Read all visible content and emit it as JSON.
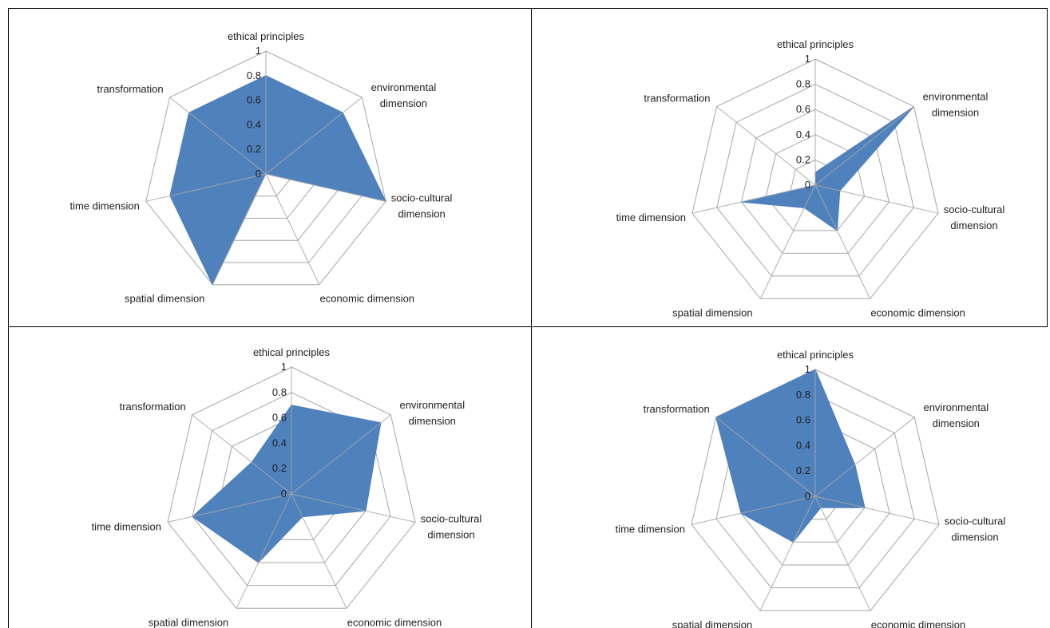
{
  "chart_data": [
    {
      "type": "radar",
      "categories": [
        "ethical principles",
        "environmental dimension",
        "socio-cultural dimension",
        "economic dimension",
        "spatial dimension",
        "time dimension",
        "transformation"
      ],
      "tick_labels": [
        "0",
        "0.2",
        "0.4",
        "0.6",
        "0.8",
        "1"
      ],
      "rlim": [
        0,
        1
      ],
      "values": [
        0.8,
        0.8,
        1.0,
        0.0,
        1.0,
        0.8,
        0.8
      ],
      "fill_color": "#4f81bd",
      "grid_color": "#a6a6a6"
    },
    {
      "type": "radar",
      "categories": [
        "ethical principles",
        "environmental dimension",
        "socio-cultural dimension",
        "economic dimension",
        "spatial dimension",
        "time dimension",
        "transformation"
      ],
      "tick_labels": [
        "0",
        "0.2",
        "0.4",
        "0.6",
        "0.8",
        "1"
      ],
      "rlim": [
        0,
        1
      ],
      "values": [
        0.1,
        1.0,
        0.2,
        0.4,
        0.2,
        0.6,
        0.0
      ],
      "fill_color": "#4f81bd",
      "grid_color": "#a6a6a6"
    },
    {
      "type": "radar",
      "categories": [
        "ethical principles",
        "environmental dimension",
        "socio-cultural dimension",
        "economic dimension",
        "spatial dimension",
        "time dimension",
        "transformation"
      ],
      "tick_labels": [
        "0",
        "0.2",
        "0.4",
        "0.6",
        "0.8",
        "1"
      ],
      "rlim": [
        0,
        1
      ],
      "values": [
        0.7,
        0.9,
        0.6,
        0.2,
        0.6,
        0.8,
        0.4
      ],
      "fill_color": "#4f81bd",
      "grid_color": "#a6a6a6"
    },
    {
      "type": "radar",
      "categories": [
        "ethical principles",
        "environmental dimension",
        "socio-cultural dimension",
        "economic dimension",
        "spatial dimension",
        "time dimension",
        "transformation"
      ],
      "tick_labels": [
        "0",
        "0.2",
        "0.4",
        "0.6",
        "0.8",
        "1"
      ],
      "rlim": [
        0,
        1
      ],
      "values": [
        1.0,
        0.4,
        0.4,
        0.1,
        0.4,
        0.6,
        1.0
      ],
      "fill_color": "#4f81bd",
      "grid_color": "#a6a6a6"
    }
  ]
}
